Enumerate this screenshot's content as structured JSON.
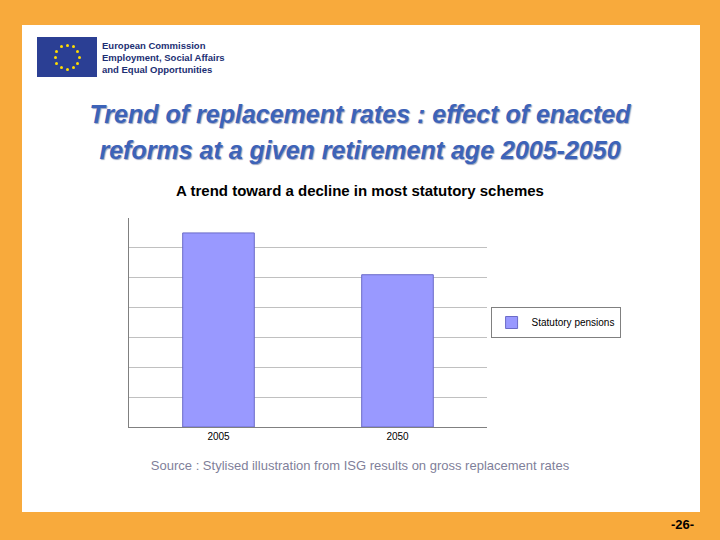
{
  "slide": {
    "logo_text": [
      "European Commission",
      "Employment, Social Affairs",
      "and Equal Opportunities"
    ],
    "page_number": "-26-"
  },
  "chart_data": {
    "type": "bar",
    "title": "Trend of replacement rates : effect of enacted reforms at a given retirement age 2005-2050",
    "subtitle": "A trend toward a decline in most statutory schemes",
    "annotations": [
      "Source : Stylised illustration from ISG results on gross replacement rates"
    ],
    "categories": [
      "2005",
      "2050"
    ],
    "series": [
      {
        "name": "Statutory pensions",
        "color": "#9999ff",
        "values": [
          6.5,
          5.1
        ]
      }
    ],
    "ylim": [
      0,
      7
    ],
    "yticks": [
      0,
      1,
      2,
      3,
      4,
      5,
      6,
      7
    ],
    "grid": true,
    "legend": "right",
    "tick_labels": "x"
  }
}
